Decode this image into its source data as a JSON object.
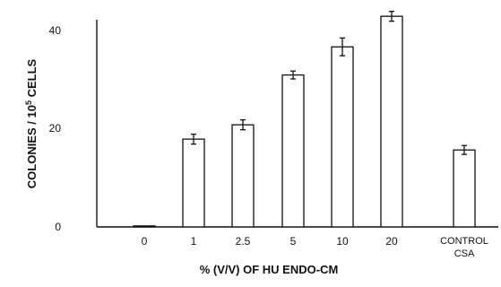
{
  "chart_data": {
    "type": "bar",
    "categories": [
      "0",
      "1",
      "2.5",
      "5",
      "10",
      "20",
      "CONTROL"
    ],
    "control_sublabel": "CSA",
    "values": [
      0.2,
      17.8,
      20.7,
      30.8,
      36.5,
      42.7,
      15.6
    ],
    "errors": [
      0,
      1.0,
      1.0,
      0.8,
      1.8,
      1.0,
      0.9
    ],
    "title": "",
    "xlabel": "% (V/V) OF HU ENDO-CM",
    "ylabel": "COLONIES / 10^5 CELLS",
    "ylabel_prefix": "COLONIES / 10",
    "ylabel_exponent": "5",
    "ylabel_suffix": " CELLS",
    "yticks": [
      "0",
      "20",
      "40"
    ],
    "ylim": [
      0,
      45
    ],
    "grid": false,
    "bar_fill": "#ffffff",
    "bar_stroke": "#111111"
  }
}
